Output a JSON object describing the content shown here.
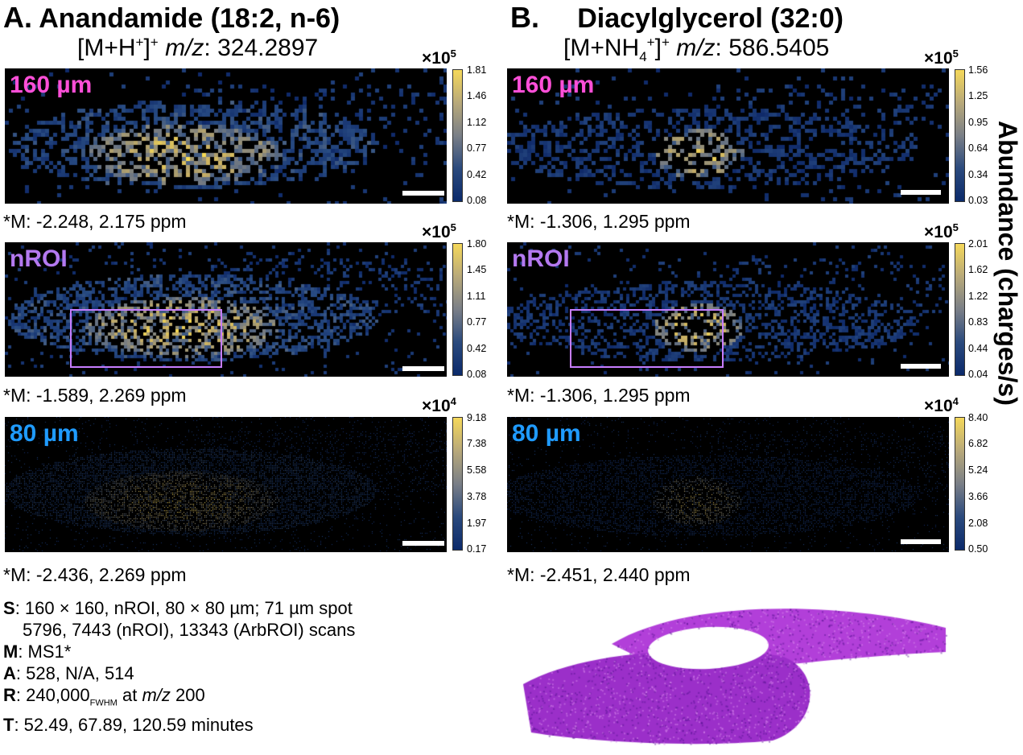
{
  "columns": [
    {
      "letter": "A.",
      "compound": "Anandamide (18:2, n-6)",
      "ion_prefix": "[M+H",
      "ion_inner_sup": "+",
      "ion_suffix": "]",
      "ion_outer_sup": "+",
      "mz_label": "m/z",
      "mz_value": ": 324.2897",
      "panels": [
        {
          "label": "160 µm",
          "label_color": "#ff4fd8",
          "multiplier_base": "×10",
          "multiplier_exp": "5",
          "ticks": [
            "1.81",
            "1.46",
            "1.12",
            "0.77",
            "0.42",
            "0.08"
          ],
          "mass_error": "*M: -2.248, 2.175 ppm",
          "has_roi": false
        },
        {
          "label": "nROI",
          "label_color": "#b479f0",
          "multiplier_base": "×10",
          "multiplier_exp": "5",
          "ticks": [
            "1.80",
            "1.45",
            "1.11",
            "0.77",
            "0.42",
            "0.08"
          ],
          "mass_error": "*M: -1.589, 2.269 ppm",
          "has_roi": true
        },
        {
          "label": "80 µm",
          "label_color": "#1f9bff",
          "multiplier_base": "×10",
          "multiplier_exp": "4",
          "ticks": [
            "9.18",
            "7.38",
            "5.58",
            "3.78",
            "1.97",
            "0.17"
          ],
          "mass_error": "*M: -2.436, 2.269 ppm",
          "has_roi": false
        }
      ]
    },
    {
      "letter": "B.",
      "compound": "Diacylglycerol (32:0)",
      "ion_prefix": "[M+NH",
      "ion_inner_sub": "4",
      "ion_inner_sup": "+",
      "ion_suffix": "]",
      "ion_outer_sup": "+",
      "mz_label": "m/z",
      "mz_value": ": 586.5405",
      "panels": [
        {
          "label": "160 µm",
          "label_color": "#ff4fd8",
          "multiplier_base": "×10",
          "multiplier_exp": "5",
          "ticks": [
            "1.56",
            "1.25",
            "0.95",
            "0.64",
            "0.34",
            "0.03"
          ],
          "mass_error": "*M: -1.306, 1.295 ppm",
          "has_roi": false
        },
        {
          "label": "nROI",
          "label_color": "#b479f0",
          "multiplier_base": "×10",
          "multiplier_exp": "5",
          "ticks": [
            "2.01",
            "1.62",
            "1.22",
            "0.83",
            "0.44",
            "0.04"
          ],
          "mass_error": "*M: -1.306, 1.295 ppm",
          "has_roi": true
        },
        {
          "label": "80 µm",
          "label_color": "#1f9bff",
          "multiplier_base": "×10",
          "multiplier_exp": "4",
          "ticks": [
            "8.40",
            "6.82",
            "5.24",
            "3.66",
            "2.08",
            "0.50"
          ],
          "mass_error": "*M: -2.451, 2.440 ppm",
          "has_roi": false
        }
      ]
    }
  ],
  "y_axis_label": "Abundance (charges/s)",
  "parameters": {
    "S_key": "S",
    "S_line1": ": 160 × 160, nROI, 80 × 80 µm; 71 µm spot",
    "S_line2": "5796, 7443 (nROI), 13343 (ArbROI) scans",
    "M_key": "M",
    "M_value": ": MS1*",
    "A_key": "A",
    "A_value": ": 528, N/A, 514",
    "R_key": "R",
    "R_value": ": 240,000",
    "R_sub": "FWHM",
    "R_mid": " at ",
    "R_mz": "m/z",
    "R_end": " 200",
    "T_key": "T",
    "T_value": ": 52.49, 67.89, 120.59 minutes"
  },
  "colors": {
    "colormap_low": "#0b2a6b",
    "colormap_mid": "#7a7f87",
    "colormap_high": "#f5d85a",
    "roi_box": "#c77dff",
    "he_stain": "#9b2fc9"
  }
}
